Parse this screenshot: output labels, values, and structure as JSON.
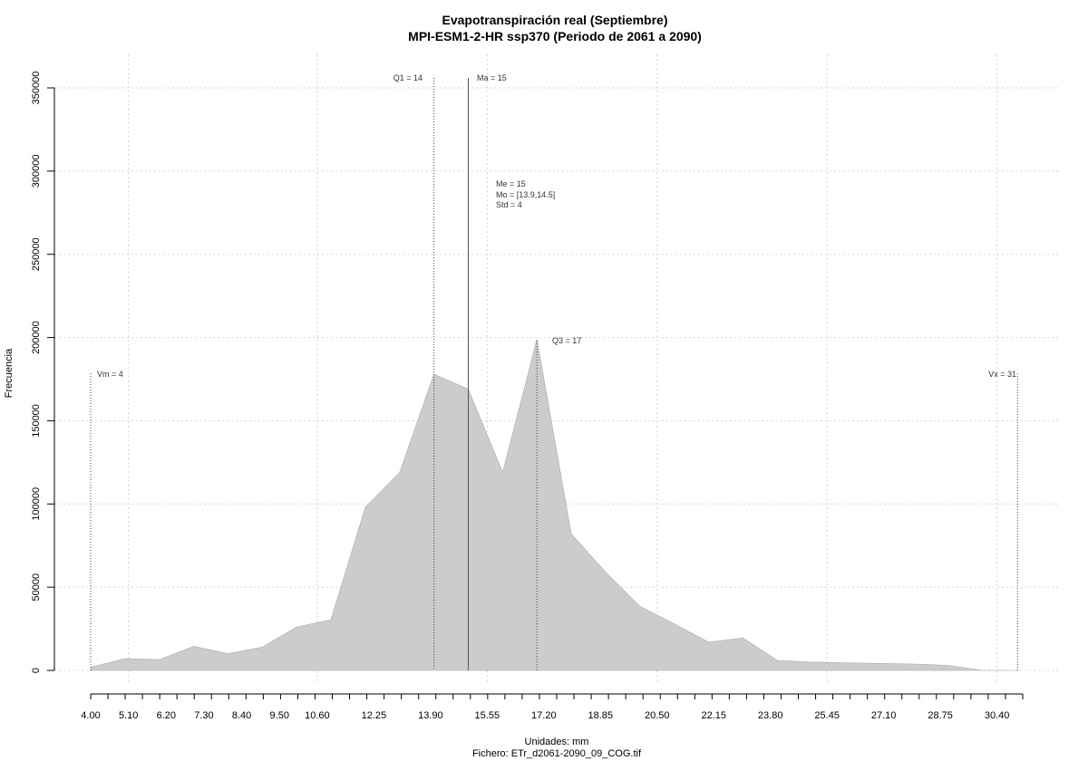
{
  "chart_data": {
    "type": "area",
    "title": "Evapotranspiración real (Septiembre)",
    "subtitle": "MPI-ESM1-2-HR ssp370 (Periodo de 2061 a 2090)",
    "xlabel": "Unidades: mm",
    "ylabel": "Frecuencia",
    "caption": "Fichero: ETr_d2061-2090_09_COG.tif",
    "xlim": [
      4.0,
      31.15
    ],
    "ylim": [
      0,
      350000
    ],
    "yticks": [
      0,
      50000,
      100000,
      150000,
      200000,
      250000,
      300000,
      350000
    ],
    "ytick_labels": [
      "0",
      "50000",
      "100000",
      "150000",
      "200000",
      "250000",
      "300000",
      "350000"
    ],
    "xtick_labels": [
      "4.00",
      "5.10",
      "6.20",
      "7.30",
      "8.40",
      "9.50",
      "10.60",
      "12.25",
      "13.90",
      "15.55",
      "17.20",
      "18.85",
      "20.50",
      "22.15",
      "23.80",
      "25.45",
      "27.10",
      "28.75",
      "30.40"
    ],
    "xtick_values": [
      4.0,
      5.1,
      6.2,
      7.3,
      8.4,
      9.5,
      10.6,
      12.25,
      13.9,
      15.55,
      17.2,
      18.85,
      20.5,
      22.15,
      23.8,
      25.45,
      27.1,
      28.75,
      30.4
    ],
    "grid": true,
    "fill_color": "#cccccc",
    "x": [
      4.0,
      5.0,
      6.0,
      7.0,
      8.0,
      9.0,
      10.0,
      11.0,
      12.0,
      13.0,
      14.0,
      15.0,
      16.0,
      17.0,
      18.0,
      19.0,
      20.0,
      21.0,
      22.0,
      23.0,
      24.0,
      25.0,
      26.0,
      27.0,
      28.0,
      29.0,
      30.0,
      31.0
    ],
    "values": [
      2000,
      7000,
      6500,
      14500,
      10000,
      14000,
      26000,
      30500,
      98000,
      119000,
      178000,
      169000,
      119000,
      199000,
      82000,
      59000,
      38500,
      28000,
      17000,
      19500,
      6000,
      5000,
      4500,
      4200,
      3800,
      3000,
      0,
      0
    ],
    "annotations": {
      "min": {
        "label": "Vm = 4",
        "x": 4.0
      },
      "q1": {
        "label": "Q1 = 14",
        "x": 14.0
      },
      "mean": {
        "label": "Ma = 15",
        "x": 15.0
      },
      "q3": {
        "label": "Q3 = 17",
        "x": 17.0
      },
      "max": {
        "label": "Vx = 31",
        "x": 31.0
      },
      "stats": [
        "Me = 15",
        "Mo = [13.9,14.5]",
        "Std = 4"
      ]
    }
  }
}
